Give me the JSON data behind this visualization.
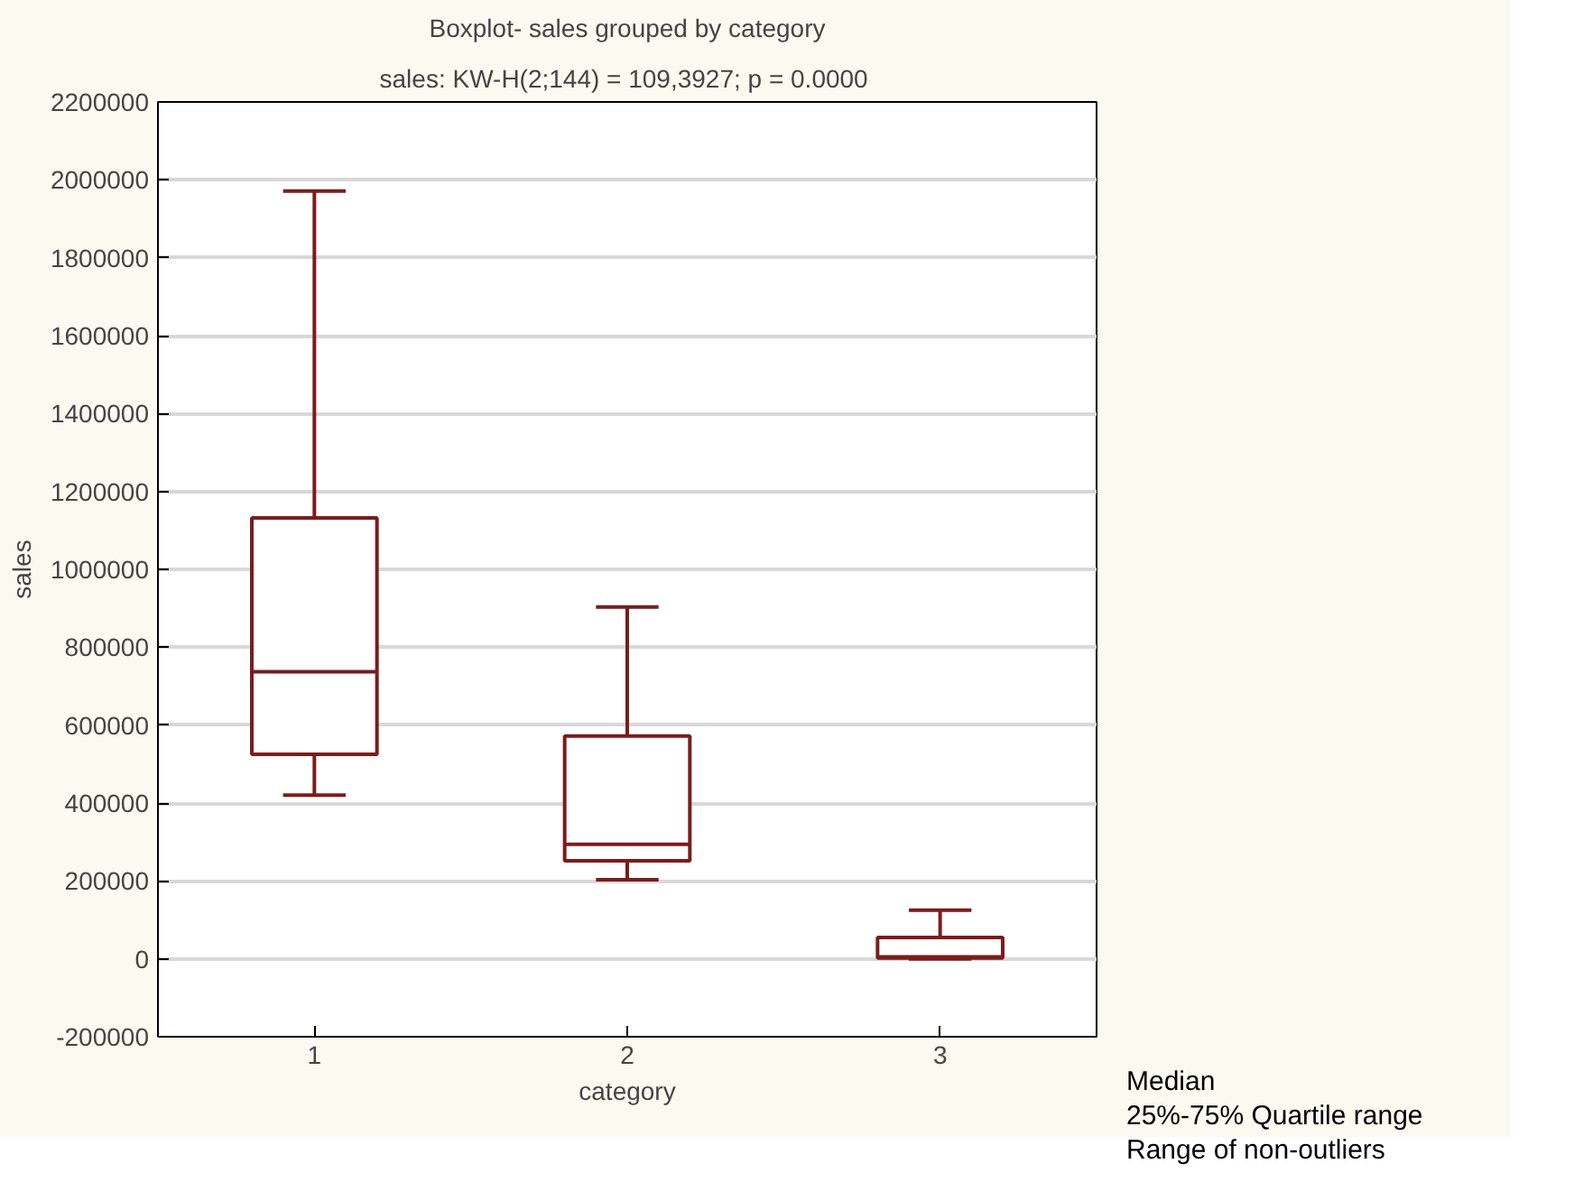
{
  "chart_data": {
    "type": "box",
    "title": "Boxplot- sales grouped by category",
    "subtitle": "sales:  KW-H(2;144) = 109,3927; p = 0.0000",
    "xlabel": "category",
    "ylabel": "sales",
    "categories": [
      "1",
      "2",
      "3"
    ],
    "series": [
      {
        "color": "#7b1c1c",
        "boxes": [
          {
            "low": 420000,
            "q1": 525000,
            "median": 737000,
            "q3": 1132000,
            "high": 1971000
          },
          {
            "low": 203000,
            "q1": 252000,
            "median": 294000,
            "q3": 572000,
            "high": 903000
          },
          {
            "low": 0,
            "q1": 2000,
            "median": 5000,
            "q3": 55000,
            "high": 125000
          }
        ]
      }
    ],
    "ylim": [
      -200000,
      2200000
    ],
    "yticks": [
      -200000,
      0,
      200000,
      400000,
      600000,
      800000,
      1000000,
      1200000,
      1400000,
      1600000,
      1800000,
      2000000,
      2200000
    ],
    "grid": "y",
    "annotations": [
      "Median",
      "25%-75% Quartile range",
      "Range of non-outliers"
    ]
  }
}
